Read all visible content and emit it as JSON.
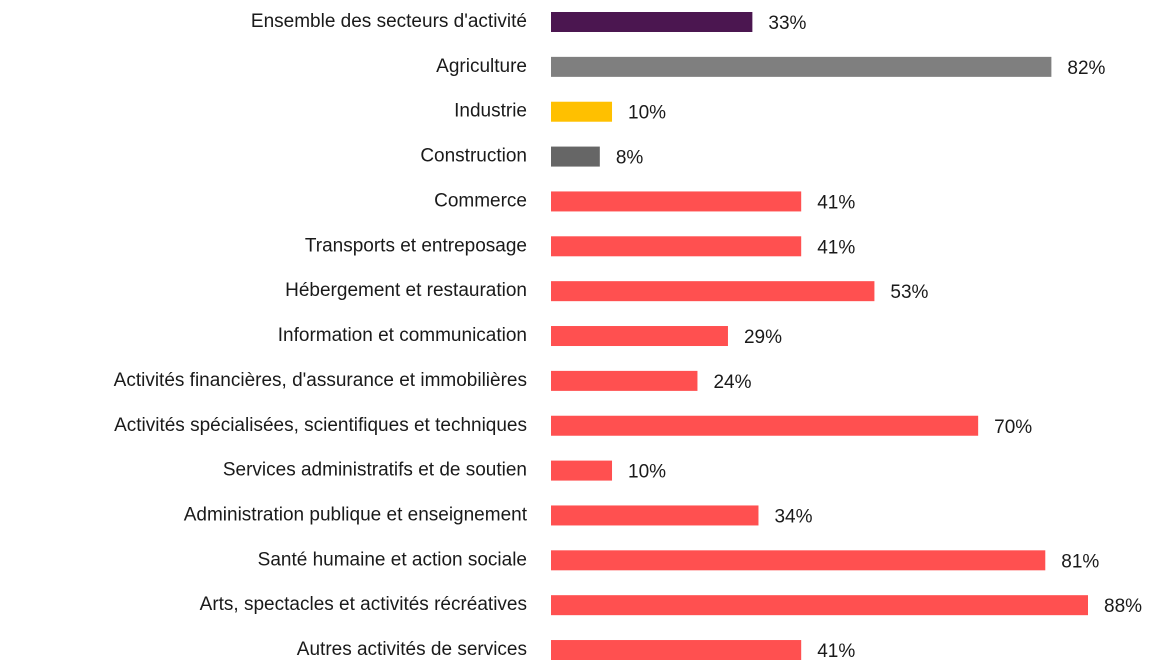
{
  "chart_data": {
    "type": "barh",
    "categories": [
      "Ensemble des secteurs d'activité",
      "Agriculture",
      "Industrie",
      "Construction",
      "Commerce",
      "Transports et entreposage",
      "Hébergement et restauration",
      "Information et communication",
      "Activités financières, d'assurance et immobilières",
      "Activités spécialisées, scientifiques et techniques",
      "Services administratifs et de soutien",
      "Administration publique et enseignement",
      "Santé humaine et action sociale",
      "Arts, spectacles et activités récréatives",
      "Autres activités de services"
    ],
    "values": [
      33,
      82,
      10,
      8,
      41,
      41,
      53,
      29,
      24,
      70,
      10,
      34,
      81,
      88,
      41
    ],
    "value_labels": [
      "33%",
      "82%",
      "10%",
      "8%",
      "41%",
      "41%",
      "53%",
      "29%",
      "24%",
      "70%",
      "10%",
      "34%",
      "81%",
      "88%",
      "41%"
    ],
    "colors": [
      "#4b1650",
      "#7f7f7f",
      "#ffc000",
      "#666666",
      "#ff5050",
      "#ff5050",
      "#ff5050",
      "#ff5050",
      "#ff5050",
      "#ff5050",
      "#ff5050",
      "#ff5050",
      "#ff5050",
      "#ff5050",
      "#ff5050"
    ]
  }
}
